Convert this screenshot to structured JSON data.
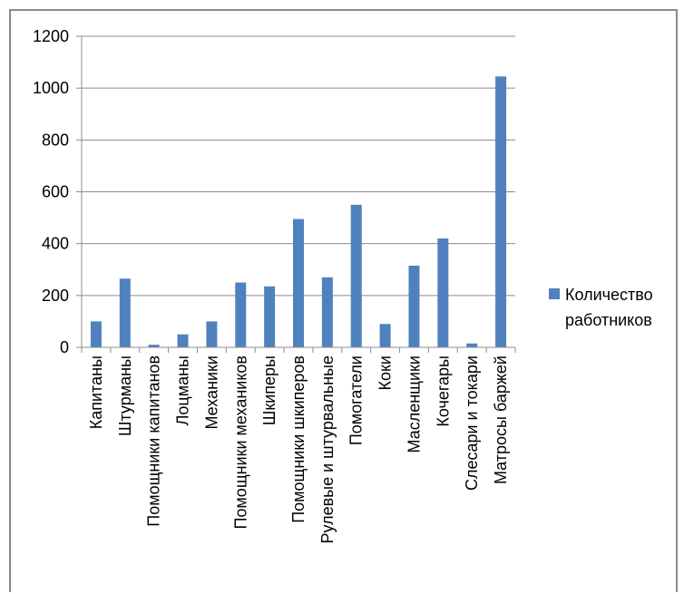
{
  "chart_data": {
    "type": "bar",
    "categories": [
      "Капитаны",
      "Штурманы",
      "Помощники капитанов",
      "Лоцманы",
      "Механики",
      "Помощники механиков",
      "Шкиперы",
      "Помощники шкиперов",
      "Рулевые и штурвальные",
      "Помогатели",
      "Коки",
      "Масленщики",
      "Кочегары",
      "Слесари и токари",
      "Матросы баржей"
    ],
    "series": [
      {
        "name": "Количество работников",
        "values": [
          100,
          265,
          10,
          50,
          100,
          250,
          235,
          495,
          270,
          550,
          90,
          315,
          420,
          15,
          1045
        ]
      }
    ],
    "ylim": [
      0,
      1200
    ],
    "yticks": [
      0,
      200,
      400,
      600,
      800,
      1000,
      1200
    ],
    "grid": true,
    "legend_position": "right",
    "colors": {
      "bar": "#4f81bd",
      "grid": "#8c8c8c",
      "axis": "#8c8c8c"
    }
  },
  "legend": {
    "line1": "Количество",
    "line2": "работников"
  }
}
